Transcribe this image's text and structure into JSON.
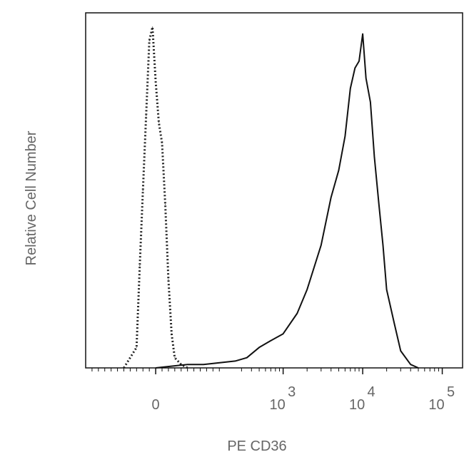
{
  "chart_data": {
    "type": "line",
    "title": "",
    "xlabel": "PE CD36",
    "ylabel": "Relative Cell Number",
    "x_scale": "biexponential",
    "xlim": [
      -220,
      180000
    ],
    "ylim": [
      0,
      1.0
    ],
    "grid": false,
    "legend": "none",
    "x_ticks": [
      {
        "value": 0,
        "base": "0",
        "exp": ""
      },
      {
        "value": 1000,
        "base": "10",
        "exp": "3"
      },
      {
        "value": 10000,
        "base": "10",
        "exp": "4"
      },
      {
        "value": 100000,
        "base": "10",
        "exp": "5"
      }
    ],
    "series": [
      {
        "style": "dotted",
        "color": "#222222",
        "x": [
          -100,
          -60,
          -50,
          -40,
          -30,
          -20,
          -10,
          0,
          10,
          20,
          30,
          40,
          50,
          60,
          80,
          100
        ],
        "y": [
          0.0,
          0.06,
          0.3,
          0.52,
          0.74,
          0.96,
          1.0,
          0.84,
          0.72,
          0.66,
          0.48,
          0.26,
          0.1,
          0.03,
          0.01,
          0.0
        ]
      },
      {
        "style": "solid",
        "color": "#111111",
        "x": [
          0,
          100,
          150,
          250,
          350,
          500,
          700,
          1000,
          1500,
          2000,
          3000,
          4000,
          5000,
          6000,
          7000,
          8000,
          9000,
          10000,
          11000,
          12500,
          14000,
          16000,
          18000,
          20000,
          25000,
          30000,
          40000,
          50000
        ],
        "y": [
          0.0,
          0.01,
          0.01,
          0.02,
          0.03,
          0.06,
          0.08,
          0.1,
          0.16,
          0.23,
          0.36,
          0.5,
          0.58,
          0.68,
          0.82,
          0.88,
          0.9,
          0.98,
          0.85,
          0.78,
          0.62,
          0.48,
          0.36,
          0.23,
          0.13,
          0.05,
          0.01,
          0.0
        ]
      }
    ]
  }
}
